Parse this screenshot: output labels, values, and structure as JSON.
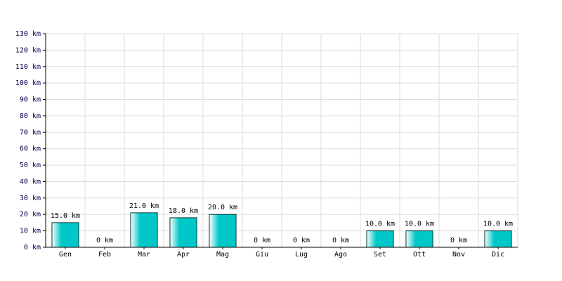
{
  "chart_data": {
    "type": "bar",
    "categories": [
      "Gen",
      "Feb",
      "Mar",
      "Apr",
      "Mag",
      "Giu",
      "Lug",
      "Ago",
      "Set",
      "Ott",
      "Nov",
      "Dic"
    ],
    "values": [
      15,
      0,
      21,
      18,
      20,
      0,
      0,
      0,
      10,
      10,
      0,
      10
    ],
    "value_labels": [
      "15.0 km",
      "0 km",
      "21.0 km",
      "18.0 km",
      "20.0 km",
      "0 km",
      "0 km",
      "0 km",
      "10.0 km",
      "10.0 km",
      "0 km",
      "10.0 km"
    ],
    "color": "#00c8c8",
    "ylim": [
      0,
      130
    ],
    "yticks": [
      {
        "value": 0,
        "label": "0 km"
      },
      {
        "value": 10,
        "label": "10 km"
      },
      {
        "value": 20,
        "label": "20 km"
      },
      {
        "value": 30,
        "label": "30 km"
      },
      {
        "value": 40,
        "label": "40 km"
      },
      {
        "value": 50,
        "label": "50 km"
      },
      {
        "value": 60,
        "label": "60 km"
      },
      {
        "value": 70,
        "label": "70 km"
      },
      {
        "value": 80,
        "label": "80 km"
      },
      {
        "value": 90,
        "label": "90 km"
      },
      {
        "value": 100,
        "label": "100 km"
      },
      {
        "value": 110,
        "label": "110 km"
      },
      {
        "value": 120,
        "label": "120 km"
      },
      {
        "value": 130,
        "label": "130 km"
      }
    ],
    "grid": true
  }
}
